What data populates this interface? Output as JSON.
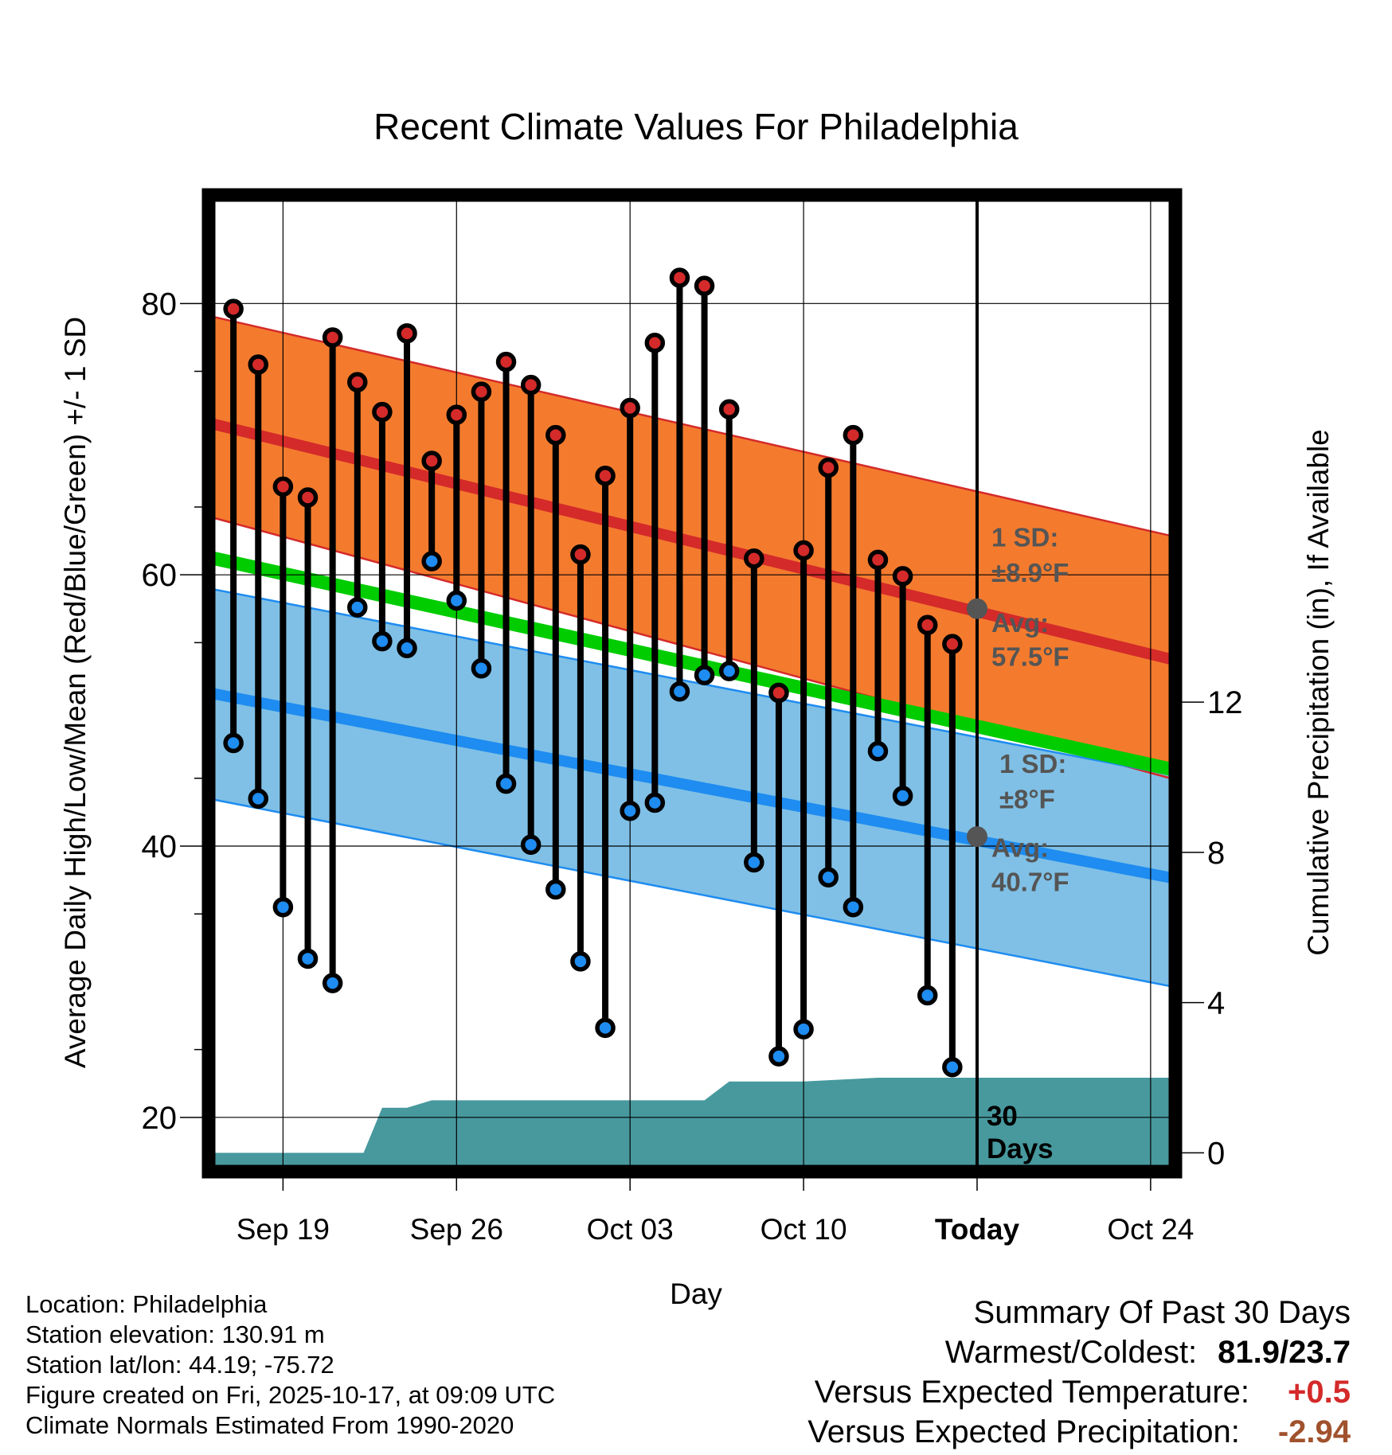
{
  "chart_data": {
    "type": "line",
    "title": "Recent Climate Values For Philadelphia",
    "xlabel": "Day",
    "ylabel": "Average Daily High/Low/Mean (Red/Blue/Green) +/- 1 SD",
    "y2label": "Cumulative Precipitation (in), If Available",
    "xlim": [
      -6.0,
      72.0
    ],
    "ylim": [
      16.0,
      88.0
    ],
    "y2lim": [
      -0.5,
      25.5
    ],
    "yticks": [
      "20",
      "40",
      "60",
      "80"
    ],
    "y2ticks": [
      "0",
      "4",
      "8",
      "12"
    ],
    "xticks": [
      {
        "x": 0,
        "label": "Sep 19"
      },
      {
        "x": 14,
        "label": "Sep 26"
      },
      {
        "x": 28,
        "label": "Oct 03"
      },
      {
        "x": 42,
        "label": "Oct 10"
      },
      {
        "x": 56,
        "label": "Today"
      },
      {
        "x": 70,
        "label": "Oct 24"
      }
    ],
    "today_x": 56,
    "today_marker_label": "30",
    "today_marker_sublabel": "Days",
    "normals": {
      "high_mean_start": 71.2,
      "high_mean_end": 53.7,
      "high_sd_upper_start": 79.1,
      "high_sd_upper_end": 62.8,
      "high_sd_lower_start": 64.3,
      "high_sd_lower_end": 44.9,
      "low_mean_start": 51.3,
      "low_mean_end": 37.6,
      "low_sd_upper_start": 59.0,
      "low_sd_upper_end": 45.2,
      "low_sd_lower_start": 43.5,
      "low_sd_lower_end": 29.6,
      "mean_start": 61.3,
      "mean_end": 45.6
    },
    "annotations": {
      "high_sd_label": "1 SD:",
      "high_sd_value": "±8.9°F",
      "high_avg_label": "Avg:",
      "high_avg_value": "57.5°F",
      "low_sd_label": "1 SD:",
      "low_sd_value": "±8°F",
      "low_avg_label": "Avg:",
      "low_avg_value": "40.7°F",
      "today_high_avg": 57.5,
      "today_low_avg": 40.7
    },
    "daily_x": [
      -4,
      -2,
      0,
      2,
      4,
      6,
      8,
      10,
      12,
      14,
      16,
      18,
      20,
      22,
      24,
      26,
      28,
      30,
      32,
      34,
      36,
      38,
      40,
      42,
      44,
      46,
      48,
      50,
      52,
      54
    ],
    "series": [
      {
        "name": "Daily High",
        "values": [
          79.6,
          75.5,
          66.5,
          65.7,
          77.5,
          74.2,
          72.0,
          77.8,
          68.4,
          71.8,
          73.5,
          75.7,
          74.0,
          70.3,
          61.5,
          67.3,
          72.3,
          77.1,
          81.9,
          81.3,
          72.2,
          61.2,
          51.3,
          61.8,
          67.9,
          70.3,
          61.1,
          59.9,
          56.3,
          54.9
        ]
      },
      {
        "name": "Daily Low",
        "values": [
          47.6,
          43.5,
          35.5,
          31.7,
          29.9,
          57.6,
          55.1,
          54.6,
          61.0,
          58.1,
          53.1,
          44.6,
          40.1,
          36.8,
          31.5,
          26.6,
          42.6,
          43.2,
          51.4,
          52.6,
          52.9,
          38.8,
          24.5,
          26.5,
          37.7,
          35.5,
          47.0,
          43.7,
          29.0,
          23.7
        ]
      }
    ],
    "precipitation": {
      "name": "Cumulative Precipitation",
      "x": [
        -6,
        0,
        6.5,
        8.0,
        10.0,
        12.0,
        14.0,
        28.0,
        34.0,
        36.0,
        42.0,
        48.0,
        56.0,
        72.0
      ],
      "values": [
        0.0,
        0.0,
        0.0,
        1.2,
        1.2,
        1.4,
        1.4,
        1.4,
        1.4,
        1.9,
        1.9,
        2.0,
        2.0,
        2.0
      ]
    }
  },
  "colors": {
    "high_band": "#f47b2e",
    "high_line": "#d42a2a",
    "low_band": "#80c0e6",
    "low_line": "#1e8cf0",
    "mean_line": "#00cc00",
    "precip": "#47999e",
    "high_dot": "#d42a2a",
    "low_dot": "#1e8cf0",
    "annotation": "#555555",
    "warm_value": "#d42a2a",
    "precip_value": "#a0522d"
  },
  "info": {
    "location": "Location: Philadelphia",
    "elevation": "Station elevation: 130.91 m",
    "latlon": "Station lat/lon: 44.19; -75.72",
    "created": "Figure created on Fri, 2025-10-17, at 09:09 UTC",
    "normals": "Climate Normals Estimated From 1990-2020"
  },
  "summary": {
    "title": "Summary Of Past 30 Days",
    "warmest_label": "Warmest/Coldest:",
    "warmest_value": "81.9/23.7",
    "temp_label": "Versus Expected Temperature:",
    "temp_value": "+0.5",
    "precip_label": "Versus Expected Precipitation:",
    "precip_value": "-2.94"
  }
}
